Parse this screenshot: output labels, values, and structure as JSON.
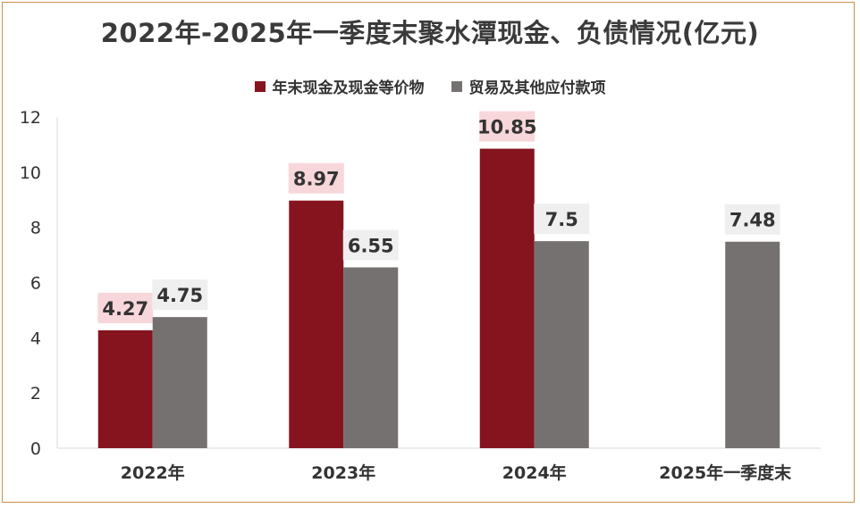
{
  "chart_data": {
    "type": "bar",
    "title": "2022年-2025年一季度末聚水潭现金、负债情况(亿元)",
    "categories": [
      "2022年",
      "2023年",
      "2024年",
      "2025年一季度末"
    ],
    "series": [
      {
        "name": "年末现金及现金等价物",
        "values": [
          4.27,
          8.97,
          10.85,
          null
        ],
        "labels": [
          "4.27",
          "8.97",
          "10.85",
          ""
        ]
      },
      {
        "name": "贸易及其他应付款项",
        "values": [
          4.75,
          6.55,
          7.5,
          7.48
        ],
        "labels": [
          "4.75",
          "6.55",
          "7.5",
          "7.48"
        ]
      }
    ],
    "ylim": [
      0,
      12
    ],
    "yticks": [
      "0",
      "2",
      "4",
      "6",
      "8",
      "10",
      "12"
    ],
    "grid": false,
    "legend_position": "top"
  },
  "colors": {
    "series_0": "#85141f",
    "series_1": "#767171",
    "label_bg_0": "#f8d7da",
    "label_bg_1": "#efefef",
    "border": "#c9914a"
  }
}
